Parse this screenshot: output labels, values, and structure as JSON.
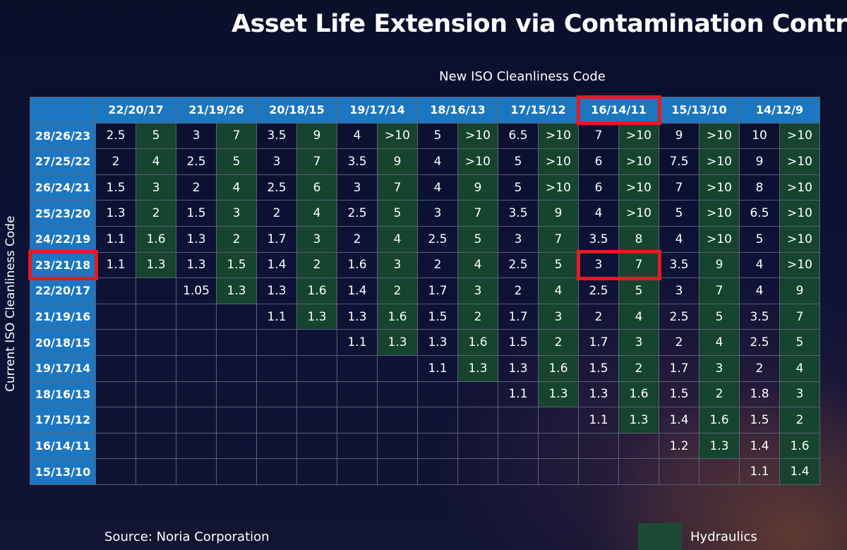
{
  "title": "Asset Life Extension via Contamination Control",
  "source": "Source: Noria Corporation",
  "legend": {
    "label": "Hydraulics",
    "color": "#16442f"
  },
  "chart_data": {
    "type": "table",
    "title": "Asset Life Extension via Contamination Control",
    "xlabel": "New ISO Cleanliness Code",
    "ylabel": "Current ISO Cleanliness Code",
    "colors": {
      "header": "#1c76c0",
      "hydraulics": "#16442f",
      "highlight": "#e41b23"
    },
    "highlight": {
      "column": "16/14/11",
      "row": "23/21/18"
    },
    "columns": [
      "22/20/17",
      "21/19/26",
      "20/18/15",
      "19/17/14",
      "18/16/13",
      "17/15/12",
      "16/14/11",
      "15/13/10",
      "14/12/9"
    ],
    "sub_columns": [
      "",
      "Hydraulics"
    ],
    "rows": [
      {
        "code": "28/26/23",
        "values": [
          "2.5",
          "5",
          "3",
          "7",
          "3.5",
          "9",
          "4",
          ">10",
          "5",
          ">10",
          "6.5",
          ">10",
          "7",
          ">10",
          "9",
          ">10",
          "10",
          ">10"
        ]
      },
      {
        "code": "27/25/22",
        "values": [
          "2",
          "4",
          "2.5",
          "5",
          "3",
          "7",
          "3.5",
          "9",
          "4",
          ">10",
          "5",
          ">10",
          "6",
          ">10",
          "7.5",
          ">10",
          "9",
          ">10"
        ]
      },
      {
        "code": "26/24/21",
        "values": [
          "1.5",
          "3",
          "2",
          "4",
          "2.5",
          "6",
          "3",
          "7",
          "4",
          "9",
          "5",
          ">10",
          "6",
          ">10",
          "7",
          ">10",
          "8",
          ">10"
        ]
      },
      {
        "code": "25/23/20",
        "values": [
          "1.3",
          "2",
          "1.5",
          "3",
          "2",
          "4",
          "2.5",
          "5",
          "3",
          "7",
          "3.5",
          "9",
          "4",
          ">10",
          "5",
          ">10",
          "6.5",
          ">10"
        ]
      },
      {
        "code": "24/22/19",
        "values": [
          "1.1",
          "1.6",
          "1.3",
          "2",
          "1.7",
          "3",
          "2",
          "4",
          "2.5",
          "5",
          "3",
          "7",
          "3.5",
          "8",
          "4",
          ">10",
          "5",
          ">10"
        ]
      },
      {
        "code": "23/21/18",
        "values": [
          "1.1",
          "1.3",
          "1.3",
          "1.5",
          "1.4",
          "2",
          "1.6",
          "3",
          "2",
          "4",
          "2.5",
          "5",
          "3",
          "7",
          "3.5",
          "9",
          "4",
          ">10"
        ]
      },
      {
        "code": "22/20/17",
        "values": [
          "",
          "",
          "1.05",
          "1.3",
          "1.3",
          "1.6",
          "1.4",
          "2",
          "1.7",
          "3",
          "2",
          "4",
          "2.5",
          "5",
          "3",
          "7",
          "4",
          "9"
        ]
      },
      {
        "code": "21/19/16",
        "values": [
          "",
          "",
          "",
          "",
          "1.1",
          "1.3",
          "1.3",
          "1.6",
          "1.5",
          "2",
          "1.7",
          "3",
          "2",
          "4",
          "2.5",
          "5",
          "3.5",
          "7"
        ]
      },
      {
        "code": "20/18/15",
        "values": [
          "",
          "",
          "",
          "",
          "",
          "",
          "1.1",
          "1.3",
          "1.3",
          "1.6",
          "1.5",
          "2",
          "1.7",
          "3",
          "2",
          "4",
          "2.5",
          "5"
        ]
      },
      {
        "code": "19/17/14",
        "values": [
          "",
          "",
          "",
          "",
          "",
          "",
          "",
          "",
          "1.1",
          "1.3",
          "1.3",
          "1.6",
          "1.5",
          "2",
          "1.7",
          "3",
          "2",
          "4"
        ]
      },
      {
        "code": "18/16/13",
        "values": [
          "",
          "",
          "",
          "",
          "",
          "",
          "",
          "",
          "",
          "",
          "1.1",
          "1.3",
          "1.3",
          "1.6",
          "1.5",
          "2",
          "1.8",
          "3"
        ]
      },
      {
        "code": "17/15/12",
        "values": [
          "",
          "",
          "",
          "",
          "",
          "",
          "",
          "",
          "",
          "",
          "",
          "",
          "1.1",
          "1.3",
          "1.4",
          "1.6",
          "1.5",
          "2"
        ]
      },
      {
        "code": "16/14/11",
        "values": [
          "",
          "",
          "",
          "",
          "",
          "",
          "",
          "",
          "",
          "",
          "",
          "",
          "",
          "",
          "1.2",
          "1.3",
          "1.4",
          "1.6"
        ]
      },
      {
        "code": "15/13/10",
        "values": [
          "",
          "",
          "",
          "",
          "",
          "",
          "",
          "",
          "",
          "",
          "",
          "",
          "",
          "",
          "",
          "",
          "1.1",
          "1.4"
        ]
      }
    ],
    "hydraulic_start_index": [
      0,
      0,
      0,
      0,
      0,
      0,
      1,
      2,
      3,
      4,
      5,
      6,
      7,
      8
    ]
  }
}
